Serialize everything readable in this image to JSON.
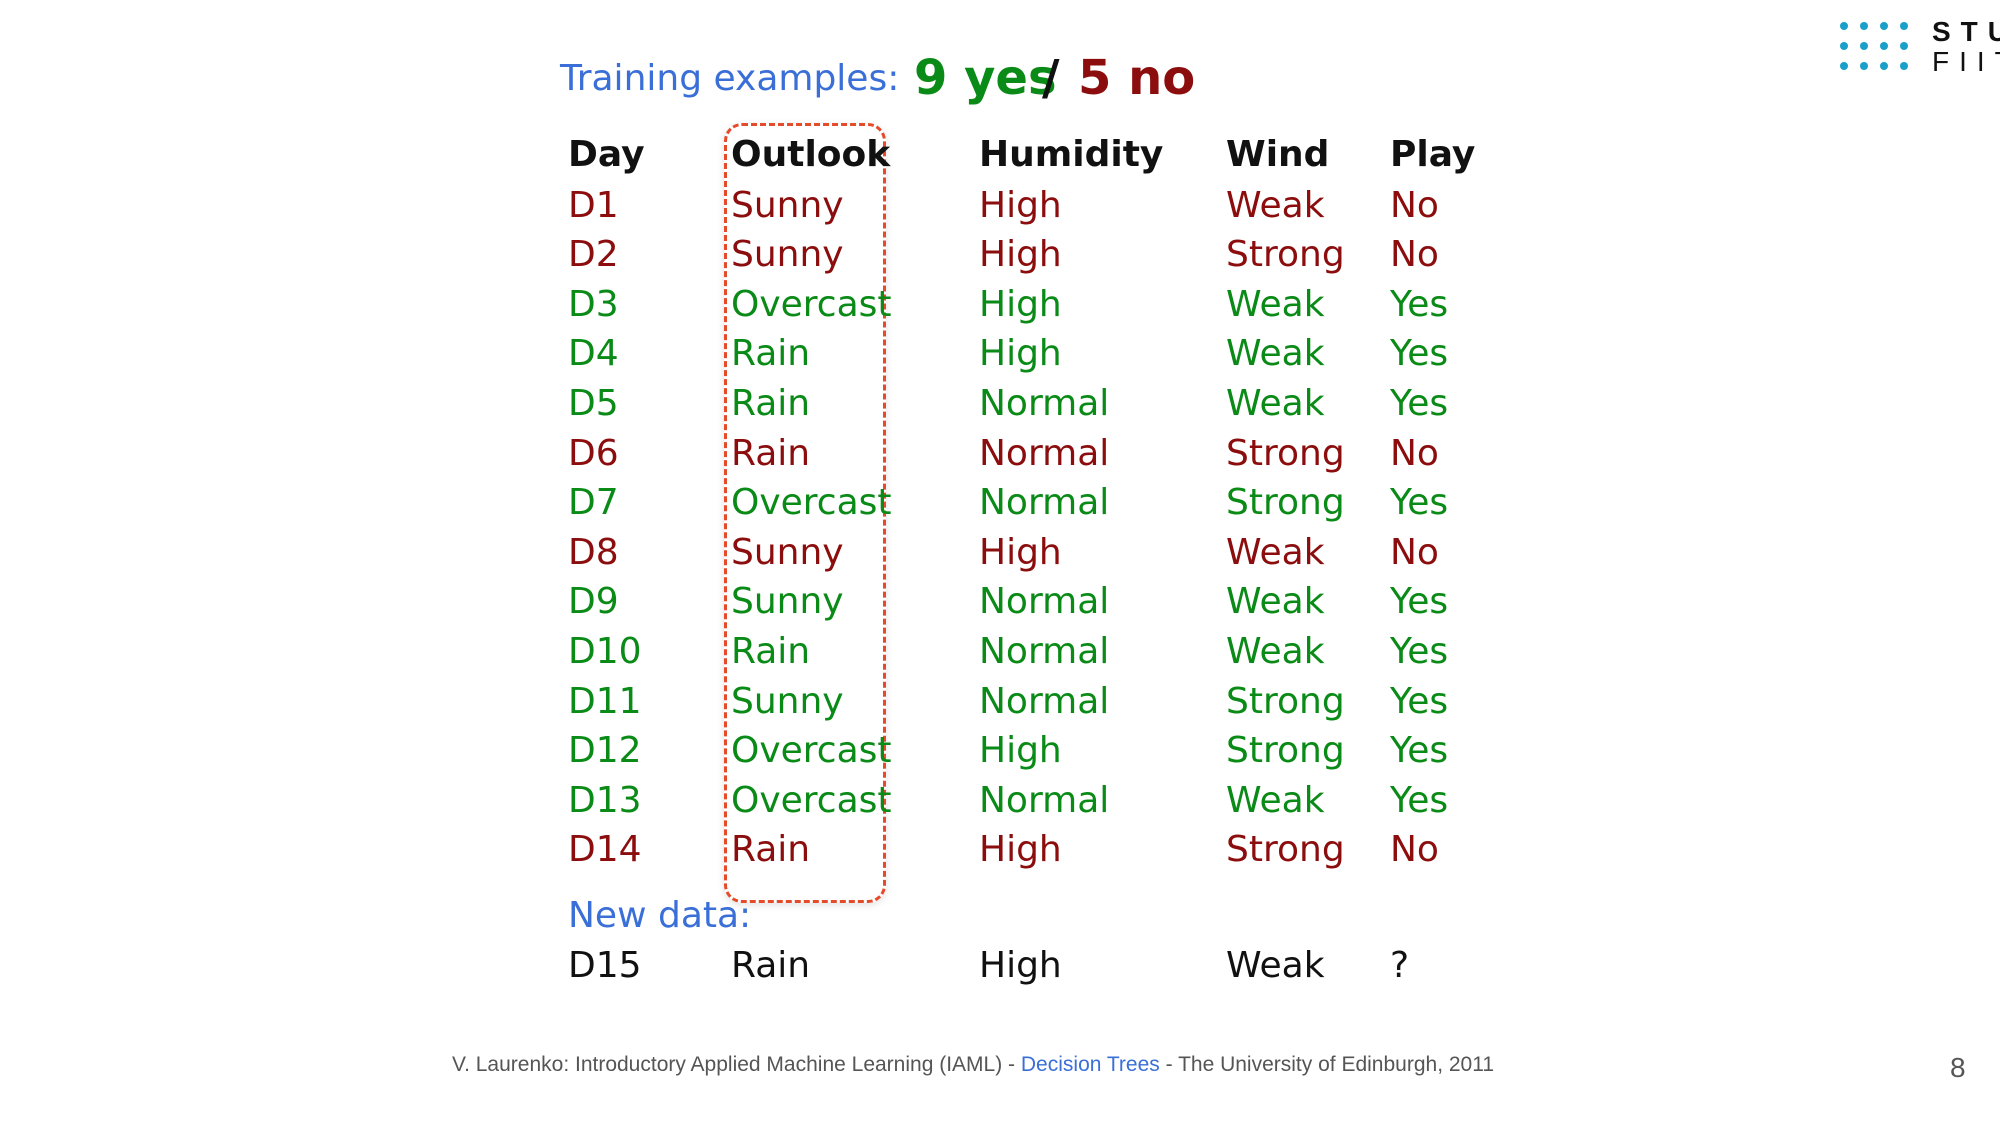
{
  "colors": {
    "yes_green": "#0a8a16",
    "no_red": "#8b0d0d",
    "label_blue": "#3a6fd8",
    "black": "#111111",
    "box_dashed": "#e34b2a",
    "logo_dots": "#1aa0c8"
  },
  "logo": {
    "line1": "STU",
    "line2": "FIIT"
  },
  "heading": {
    "label": "Training examples:",
    "yes": "9 yes",
    "slash": "/",
    "no": "5 no"
  },
  "table": {
    "columns": [
      "Day",
      "Outlook",
      "Humidity",
      "Wind",
      "Play"
    ],
    "rows": [
      {
        "cells": [
          "D1",
          "Sunny",
          "High",
          "Weak",
          "No"
        ],
        "colors": [
          "no",
          "no",
          "no",
          "no",
          "no"
        ]
      },
      {
        "cells": [
          "D2",
          "Sunny",
          "High",
          "Strong",
          "No"
        ],
        "colors": [
          "no",
          "no",
          "no",
          "no",
          "no"
        ]
      },
      {
        "cells": [
          "D3",
          "Overcast",
          "High",
          "Weak",
          "Yes"
        ],
        "colors": [
          "yes",
          "yes",
          "yes",
          "yes",
          "yes"
        ]
      },
      {
        "cells": [
          "D4",
          "Rain",
          "High",
          "Weak",
          "Yes"
        ],
        "colors": [
          "yes",
          "yes",
          "yes",
          "yes",
          "yes"
        ]
      },
      {
        "cells": [
          "D5",
          "Rain",
          "Normal",
          "Weak",
          "Yes"
        ],
        "colors": [
          "yes",
          "yes",
          "yes",
          "yes",
          "yes"
        ]
      },
      {
        "cells": [
          "D6",
          "Rain",
          "Normal",
          "Strong",
          "No"
        ],
        "colors": [
          "no",
          "no",
          "no",
          "no",
          "no"
        ]
      },
      {
        "cells": [
          "D7",
          "Overcast",
          "Normal",
          "Strong",
          "Yes"
        ],
        "colors": [
          "yes",
          "yes",
          "yes",
          "yes",
          "yes"
        ]
      },
      {
        "cells": [
          "D8",
          "Sunny",
          "High",
          "Weak",
          "No"
        ],
        "colors": [
          "no",
          "no",
          "no",
          "no",
          "no"
        ]
      },
      {
        "cells": [
          "D9",
          "Sunny",
          "Normal",
          "Weak",
          "Yes"
        ],
        "colors": [
          "yes",
          "yes",
          "yes",
          "yes",
          "yes"
        ]
      },
      {
        "cells": [
          "D10",
          "Rain",
          "Normal",
          "Weak",
          "Yes"
        ],
        "colors": [
          "yes",
          "yes",
          "yes",
          "yes",
          "yes"
        ]
      },
      {
        "cells": [
          "D11",
          "Sunny",
          "Normal",
          "Strong",
          "Yes"
        ],
        "colors": [
          "yes",
          "yes",
          "yes",
          "yes",
          "yes"
        ]
      },
      {
        "cells": [
          "D12",
          "Overcast",
          "High",
          "Strong",
          "Yes"
        ],
        "colors": [
          "yes",
          "yes",
          "yes",
          "yes",
          "yes"
        ]
      },
      {
        "cells": [
          "D13",
          "Overcast",
          "Normal",
          "Weak",
          "Yes"
        ],
        "colors": [
          "yes",
          "yes",
          "yes",
          "yes",
          "yes"
        ]
      },
      {
        "cells": [
          "D14",
          "Rain",
          "High",
          "Strong",
          "No"
        ],
        "colors": [
          "no",
          "no",
          "no",
          "no",
          "no"
        ]
      }
    ]
  },
  "new_data": {
    "label": "New data:",
    "cells": [
      "D15",
      "Rain",
      "High",
      "Weak",
      "?"
    ]
  },
  "footer": {
    "prefix": "V. Laurenko: Introductory Applied Machine Learning (IAML) - ",
    "link": "Decision Trees",
    "suffix": " - The University of Edinburgh, 2011"
  },
  "page_number": "8"
}
